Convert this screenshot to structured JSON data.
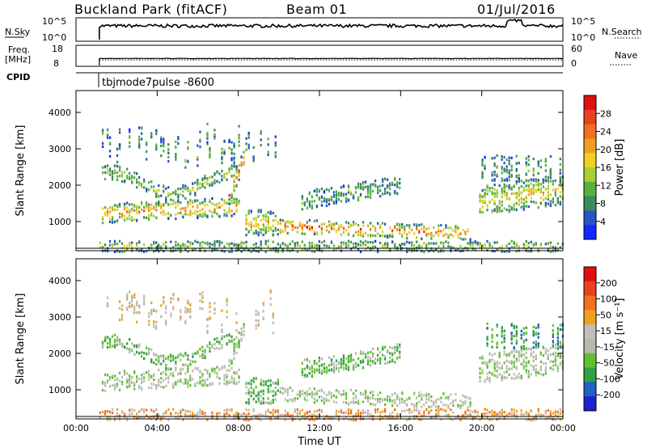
{
  "header": {
    "station": "Buckland Park (fitACF)",
    "beam": "Beam 01",
    "date": "01/Jul/2016"
  },
  "noise_panel": {
    "left_label": "N.Sky",
    "left_top_tick": "10^5",
    "left_bottom_tick": "10^0",
    "right_label": "N.Search",
    "right_top_tick": "10^5",
    "right_bottom_tick": "10^0"
  },
  "freq_panel": {
    "left_label_line1": "Freq.",
    "left_label_line2": "[MHz]",
    "left_top_tick": "18",
    "left_bottom_tick": "8",
    "right_label": "Nave",
    "right_top_tick": "60",
    "right_bottom_tick": "0"
  },
  "cpid": {
    "label": "CPID",
    "value": "tbjmode7pulse -8600"
  },
  "colors": {
    "power_scale": [
      "#1428ff",
      "#2a55c0",
      "#3c8c5a",
      "#58b040",
      "#a8d030",
      "#f0d020",
      "#f0a020",
      "#f07020",
      "#e84020",
      "#e01010"
    ],
    "velocity_scale": [
      "#2020d0",
      "#2060c8",
      "#30a040",
      "#60c030",
      "#b8b8b0",
      "#c0c0b8",
      "#f0a020",
      "#f07020",
      "#e84020",
      "#e01010"
    ]
  },
  "chart_data": [
    {
      "type": "heatmap",
      "panel": "power",
      "ylabel": "Slant Range [km]",
      "x_ticks": [
        "00:00",
        "04:00",
        "08:00",
        "12:00",
        "16:00",
        "20:00",
        "00:00"
      ],
      "y_ticks": [
        "1000",
        "2000",
        "3000",
        "4000"
      ],
      "ylim": [
        200,
        4600
      ],
      "xlim_hours": [
        0,
        24
      ],
      "colorbar_label": "Power [dB]",
      "colorbar_ticks": [
        "4",
        "8",
        "12",
        "16",
        "20",
        "24",
        "28"
      ],
      "colorbar_range": [
        0,
        32
      ]
    },
    {
      "type": "heatmap",
      "panel": "velocity",
      "ylabel": "Slant Range [km]",
      "x_ticks": [
        "00:00",
        "04:00",
        "08:00",
        "12:00",
        "16:00",
        "20:00",
        "00:00"
      ],
      "y_ticks": [
        "1000",
        "2000",
        "3000",
        "4000"
      ],
      "ylim": [
        200,
        4600
      ],
      "xlim_hours": [
        0,
        24
      ],
      "xlabel": "Time UT",
      "colorbar_label": "Velocity [m s⁻¹]",
      "colorbar_ticks": [
        "200",
        "100",
        "50",
        "15",
        "-15",
        "-50",
        "-100",
        "-200"
      ]
    }
  ]
}
